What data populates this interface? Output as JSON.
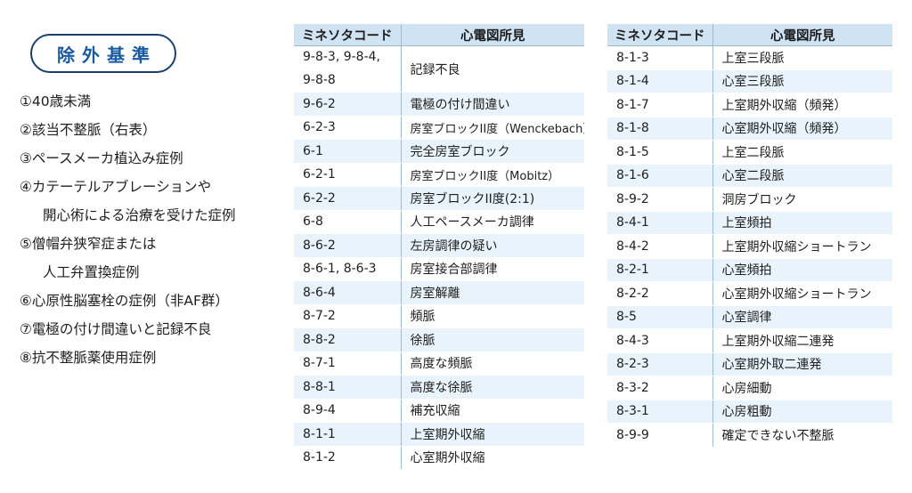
{
  "exclusion": {
    "title": "除外基準",
    "items": [
      "①40歳未満",
      "②該当不整脈（右表）",
      "③ペースメーカ植込み症例",
      "④カテーテルアブレーションや",
      "開心術による治療を受けた症例",
      "⑤僧帽弁狭窄症または",
      "人工弁置換症例",
      "⑥心原性脳塞栓の症例（非AF群）",
      "⑦電極の付け間違いと記録不良",
      "⑧抗不整脈薬使用症例"
    ]
  },
  "tables": {
    "headers": {
      "code": "ミネソタコード",
      "finding": "心電図所見"
    },
    "left": [
      {
        "code": "9-8-3, 9-8-4,",
        "code2": "9-8-8",
        "finding": "記録不良"
      },
      {
        "code": "9-6-2",
        "finding": "電極の付け間違い"
      },
      {
        "code": "6-2-3",
        "finding": "房室ブロックII度（Wenckebach）"
      },
      {
        "code": "6-1",
        "finding": "完全房室ブロック"
      },
      {
        "code": "6-2-1",
        "finding": "房室ブロックII度（Mobitz）"
      },
      {
        "code": "6-2-2",
        "finding": "房室ブロックII度(2:1)"
      },
      {
        "code": "6-8",
        "finding": "人工ペースメーカ調律"
      },
      {
        "code": "8-6-2",
        "finding": "左房調律の疑い"
      },
      {
        "code": "8-6-1, 8-6-3",
        "finding": "房室接合部調律"
      },
      {
        "code": "8-6-4",
        "finding": "房室解離"
      },
      {
        "code": "8-7-2",
        "finding": "頻脈"
      },
      {
        "code": "8-8-2",
        "finding": "徐脈"
      },
      {
        "code": "8-7-1",
        "finding": "高度な頻脈"
      },
      {
        "code": "8-8-1",
        "finding": "高度な徐脈"
      },
      {
        "code": "8-9-4",
        "finding": "補充収縮"
      },
      {
        "code": "8-1-1",
        "finding": "上室期外収縮"
      },
      {
        "code": "8-1-2",
        "finding": "心室期外収縮"
      }
    ],
    "right": [
      {
        "code": "8-1-3",
        "finding": "上室三段脈"
      },
      {
        "code": "8-1-4",
        "finding": "心室三段脈"
      },
      {
        "code": "8-1-7",
        "finding": "上室期外収縮（頻発）"
      },
      {
        "code": "8-1-8",
        "finding": "心室期外収縮（頻発）"
      },
      {
        "code": "8-1-5",
        "finding": "上室二段脈"
      },
      {
        "code": "8-1-6",
        "finding": "心室二段脈"
      },
      {
        "code": "8-9-2",
        "finding": "洞房ブロック"
      },
      {
        "code": "8-4-1",
        "finding": "上室頻拍"
      },
      {
        "code": "8-4-2",
        "finding": "上室期外収縮ショートラン"
      },
      {
        "code": "8-2-1",
        "finding": "心室頻拍"
      },
      {
        "code": "8-2-2",
        "finding": "心室期外収縮ショートラン"
      },
      {
        "code": "8-5",
        "finding": "心室調律"
      },
      {
        "code": "8-4-3",
        "finding": "上室期外収縮二連発"
      },
      {
        "code": "8-2-3",
        "finding": "心室期外取二連発"
      },
      {
        "code": "8-3-2",
        "finding": "心房細動"
      },
      {
        "code": "8-3-1",
        "finding": "心房粗動"
      },
      {
        "code": "8-9-9",
        "finding": "確定できない不整脈"
      }
    ]
  },
  "colors": {
    "header_bg": "#cfe3f2",
    "stripe_bg": "#e8f3fb",
    "badge_border": "#1a3f6b",
    "badge_text": "#1a5aa0"
  }
}
